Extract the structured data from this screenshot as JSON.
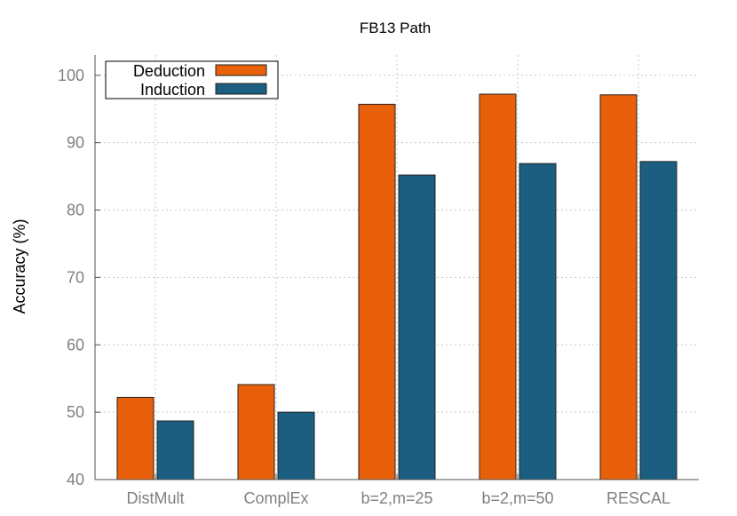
{
  "chart_data": {
    "type": "bar",
    "title": "FB13 Path",
    "xlabel": "",
    "ylabel": "Accuracy (%)",
    "ylim": [
      40,
      103
    ],
    "yticks": [
      40,
      50,
      60,
      70,
      80,
      90,
      100
    ],
    "categories": [
      "DistMult",
      "ComplEx",
      "b=2,m=25",
      "b=2,m=50",
      "RESCAL"
    ],
    "series": [
      {
        "name": "Deduction",
        "color": "#e8600a",
        "values": [
          52.2,
          54.1,
          95.7,
          97.2,
          97.1
        ]
      },
      {
        "name": "Induction",
        "color": "#1b5e80",
        "values": [
          48.7,
          50.0,
          85.2,
          86.9,
          87.2
        ]
      }
    ],
    "grid": true,
    "legend_position": "top-left"
  }
}
